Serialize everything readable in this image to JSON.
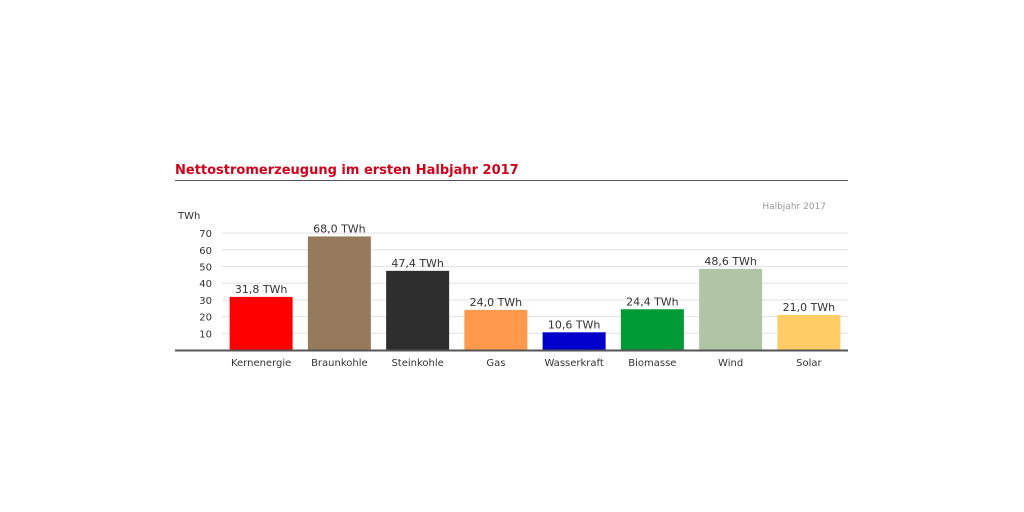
{
  "title": "Nettostromerzeugung im ersten Halbjahr 2017",
  "legend_label": "Halbjahr 2017",
  "chart_data": {
    "type": "bar",
    "title": "Nettostromerzeugung im ersten Halbjahr 2017",
    "unit_label": "TWh",
    "series_name": "Halbjahr 2017",
    "categories": [
      "Kernenergie",
      "Braunkohle",
      "Steinkohle",
      "Gas",
      "Wasserkraft",
      "Biomasse",
      "Wind",
      "Solar"
    ],
    "values": [
      31.8,
      68.0,
      47.4,
      24.0,
      10.6,
      24.4,
      48.6,
      21.0
    ],
    "value_labels": [
      "31,8 TWh",
      "68,0 TWh",
      "47,4 TWh",
      "24,0 TWh",
      "10,6 TWh",
      "24,4 TWh",
      "48,6 TWh",
      "21,0 TWh"
    ],
    "colors": [
      "#ff0000",
      "#967a5c",
      "#2e2e2e",
      "#ff9a4d",
      "#0000cc",
      "#009a36",
      "#b0c4a6",
      "#ffcc66"
    ],
    "yticks": [
      10,
      20,
      30,
      40,
      50,
      60,
      70
    ],
    "ylim": [
      0,
      80
    ],
    "grid": true,
    "legend_position": "top-right"
  }
}
